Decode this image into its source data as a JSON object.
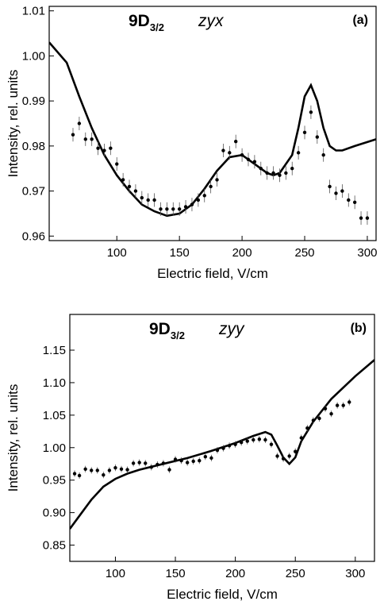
{
  "chart_data": [
    {
      "type": "scatter",
      "state": "9D",
      "subscript": "3/2",
      "polarization": "zyx",
      "panel_label": "(a)",
      "x_label": "Electric field, V/cm",
      "y_label": "Intensity, rel. units",
      "xlim": [
        46,
        307
      ],
      "ylim": [
        0.959,
        1.011
      ],
      "xticks": [
        100,
        150,
        200,
        250,
        300
      ],
      "yticks": [
        0.96,
        0.97,
        0.98,
        0.99,
        {
          "value": 1,
          "label": "1.00"
        },
        1.01
      ],
      "color": "#000000",
      "points": {
        "x": [
          65,
          70,
          75,
          80,
          85,
          90,
          95,
          100,
          105,
          110,
          115,
          120,
          125,
          130,
          135,
          140,
          145,
          150,
          155,
          160,
          165,
          170,
          175,
          180,
          185,
          190,
          195,
          200,
          205,
          210,
          215,
          220,
          225,
          230,
          235,
          240,
          245,
          250,
          255,
          260,
          265,
          270,
          275,
          280,
          285,
          290,
          295,
          300
        ],
        "y": [
          0.9825,
          0.985,
          0.9815,
          0.9815,
          0.9795,
          0.979,
          0.9795,
          0.976,
          0.9725,
          0.971,
          0.97,
          0.9685,
          0.968,
          0.968,
          0.966,
          0.966,
          0.966,
          0.966,
          0.9665,
          0.967,
          0.968,
          0.969,
          0.971,
          0.9725,
          0.979,
          0.9785,
          0.981,
          0.978,
          0.977,
          0.9765,
          0.975,
          0.974,
          0.974,
          0.9735,
          0.974,
          0.975,
          0.9785,
          0.983,
          0.9875,
          0.982,
          0.978,
          0.971,
          0.9695,
          0.97,
          0.968,
          0.9675,
          0.964,
          0.964
        ],
        "err": [
          0.0015,
          0.0015,
          0.0015,
          0.0015,
          0.0015,
          0.0015,
          0.0015,
          0.0015,
          0.0015,
          0.0015,
          0.0015,
          0.0015,
          0.0015,
          0.0015,
          0.0015,
          0.0015,
          0.0015,
          0.0015,
          0.0015,
          0.0015,
          0.0015,
          0.0015,
          0.0015,
          0.0015,
          0.0015,
          0.0015,
          0.0015,
          0.0015,
          0.0015,
          0.0015,
          0.0015,
          0.0015,
          0.0015,
          0.0015,
          0.0015,
          0.0015,
          0.0015,
          0.0015,
          0.0015,
          0.0015,
          0.0015,
          0.0015,
          0.0015,
          0.0015,
          0.0015,
          0.0015,
          0.0015,
          0.0015
        ]
      },
      "curve": {
        "x": [
          46,
          60,
          70,
          80,
          90,
          100,
          110,
          120,
          130,
          140,
          150,
          160,
          170,
          180,
          190,
          200,
          210,
          220,
          225,
          230,
          240,
          245,
          250,
          255,
          260,
          265,
          270,
          275,
          280,
          290,
          307
        ],
        "y": [
          1.003,
          0.9985,
          0.991,
          0.984,
          0.978,
          0.9735,
          0.97,
          0.967,
          0.9655,
          0.9645,
          0.965,
          0.967,
          0.9705,
          0.9745,
          0.9775,
          0.978,
          0.976,
          0.974,
          0.9735,
          0.974,
          0.978,
          0.984,
          0.991,
          0.9935,
          0.99,
          0.984,
          0.98,
          0.979,
          0.979,
          0.98,
          0.9815
        ]
      }
    },
    {
      "type": "scatter",
      "state": "9D",
      "subscript": "3/2",
      "polarization": "zyy",
      "panel_label": "(b)",
      "x_label": "Electric field, V/cm",
      "y_label": "Intensity, rel. units",
      "xlim": [
        62,
        316
      ],
      "ylim": [
        0.825,
        1.205
      ],
      "xticks": [
        100,
        150,
        200,
        250,
        300
      ],
      "yticks": [
        0.85,
        {
          "value": 0.9,
          "label": "0.90"
        },
        0.95,
        {
          "value": 1,
          "label": "1.00"
        },
        1.05,
        {
          "value": 1.1,
          "label": "1.10"
        },
        1.15
      ],
      "color": "#000000",
      "points": {
        "x": [
          66,
          70,
          75,
          80,
          85,
          90,
          95,
          100,
          105,
          110,
          115,
          120,
          125,
          130,
          135,
          140,
          145,
          150,
          155,
          160,
          165,
          170,
          175,
          180,
          185,
          190,
          195,
          200,
          205,
          210,
          215,
          220,
          225,
          230,
          235,
          240,
          245,
          250,
          255,
          260,
          265,
          270,
          275,
          280,
          285,
          290,
          295
        ],
        "y": [
          0.96,
          0.957,
          0.967,
          0.965,
          0.965,
          0.958,
          0.965,
          0.969,
          0.967,
          0.966,
          0.976,
          0.977,
          0.976,
          0.97,
          0.974,
          0.976,
          0.966,
          0.982,
          0.98,
          0.977,
          0.979,
          0.98,
          0.986,
          0.984,
          0.996,
          0.999,
          1.003,
          1.005,
          1.008,
          1.01,
          1.012,
          1.013,
          1.012,
          1.005,
          0.987,
          0.983,
          0.987,
          0.994,
          1.015,
          1.03,
          1.042,
          1.045,
          1.06,
          1.052,
          1.065,
          1.065,
          1.07
        ],
        "err": [
          0.005,
          0.005,
          0.005,
          0.005,
          0.005,
          0.005,
          0.005,
          0.005,
          0.005,
          0.005,
          0.005,
          0.005,
          0.005,
          0.005,
          0.005,
          0.005,
          0.005,
          0.005,
          0.005,
          0.005,
          0.005,
          0.005,
          0.005,
          0.005,
          0.005,
          0.005,
          0.005,
          0.005,
          0.005,
          0.005,
          0.005,
          0.005,
          0.005,
          0.005,
          0.005,
          0.005,
          0.005,
          0.005,
          0.005,
          0.005,
          0.005,
          0.005,
          0.005,
          0.005,
          0.005,
          0.005,
          0.005
        ]
      },
      "curve": {
        "x": [
          62,
          70,
          80,
          90,
          100,
          110,
          120,
          140,
          160,
          180,
          200,
          215,
          225,
          230,
          235,
          240,
          245,
          250,
          255,
          265,
          280,
          300,
          316
        ],
        "y": [
          0.875,
          0.895,
          0.92,
          0.94,
          0.952,
          0.96,
          0.966,
          0.975,
          0.984,
          0.995,
          1.007,
          1.018,
          1.024,
          1.02,
          1.003,
          0.985,
          0.975,
          0.985,
          1.01,
          1.04,
          1.075,
          1.11,
          1.135
        ]
      }
    }
  ]
}
